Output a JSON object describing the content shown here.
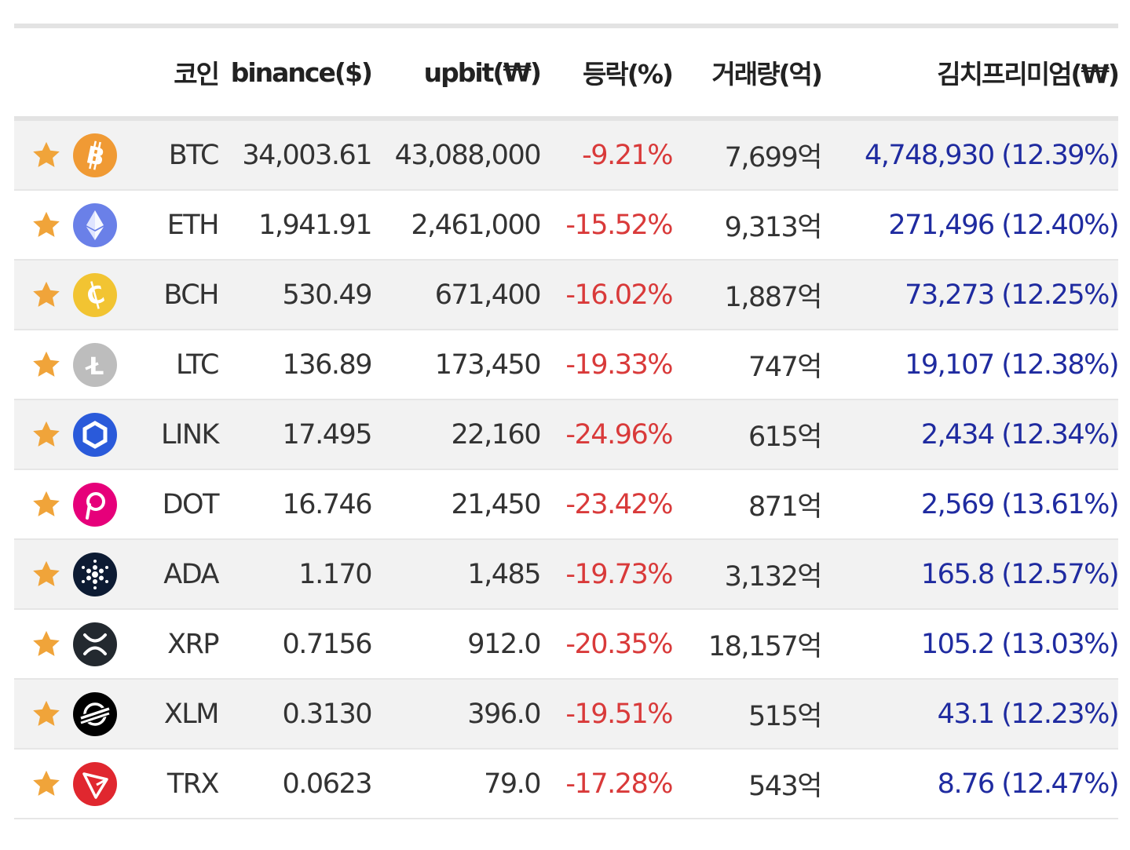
{
  "header": {
    "coin": "코인",
    "binance": "binance($)",
    "upbit": "upbit(₩)",
    "change": "등락(%)",
    "volume": "거래량(억)",
    "kimchi": "김치프리미엄(₩)"
  },
  "colors": {
    "star": "#f0a43a",
    "negative": "#d93a3a",
    "premium": "#1f2ba0",
    "row_shade": "#f2f2f2"
  },
  "rows": [
    {
      "symbol": "BTC",
      "icon": "bitcoin-icon",
      "binance": "34,003.61",
      "upbit": "43,088,000",
      "change": "-9.21%",
      "volume": "7,699억",
      "premium": "4,748,930 (12.39%)"
    },
    {
      "symbol": "ETH",
      "icon": "ethereum-icon",
      "binance": "1,941.91",
      "upbit": "2,461,000",
      "change": "-15.52%",
      "volume": "9,313억",
      "premium": "271,496 (12.40%)"
    },
    {
      "symbol": "BCH",
      "icon": "bitcoin-cash-icon",
      "binance": "530.49",
      "upbit": "671,400",
      "change": "-16.02%",
      "volume": "1,887억",
      "premium": "73,273 (12.25%)"
    },
    {
      "symbol": "LTC",
      "icon": "litecoin-icon",
      "binance": "136.89",
      "upbit": "173,450",
      "change": "-19.33%",
      "volume": "747억",
      "premium": "19,107 (12.38%)"
    },
    {
      "symbol": "LINK",
      "icon": "chainlink-icon",
      "binance": "17.495",
      "upbit": "22,160",
      "change": "-24.96%",
      "volume": "615억",
      "premium": "2,434 (12.34%)"
    },
    {
      "symbol": "DOT",
      "icon": "polkadot-icon",
      "binance": "16.746",
      "upbit": "21,450",
      "change": "-23.42%",
      "volume": "871억",
      "premium": "2,569 (13.61%)"
    },
    {
      "symbol": "ADA",
      "icon": "cardano-icon",
      "binance": "1.170",
      "upbit": "1,485",
      "change": "-19.73%",
      "volume": "3,132억",
      "premium": "165.8 (12.57%)"
    },
    {
      "symbol": "XRP",
      "icon": "xrp-icon",
      "binance": "0.7156",
      "upbit": "912.0",
      "change": "-20.35%",
      "volume": "18,157억",
      "premium": "105.2 (13.03%)"
    },
    {
      "symbol": "XLM",
      "icon": "stellar-icon",
      "binance": "0.3130",
      "upbit": "396.0",
      "change": "-19.51%",
      "volume": "515억",
      "premium": "43.1 (12.23%)"
    },
    {
      "symbol": "TRX",
      "icon": "tron-icon",
      "binance": "0.0623",
      "upbit": "79.0",
      "change": "-17.28%",
      "volume": "543억",
      "premium": "8.76 (12.47%)"
    }
  ]
}
